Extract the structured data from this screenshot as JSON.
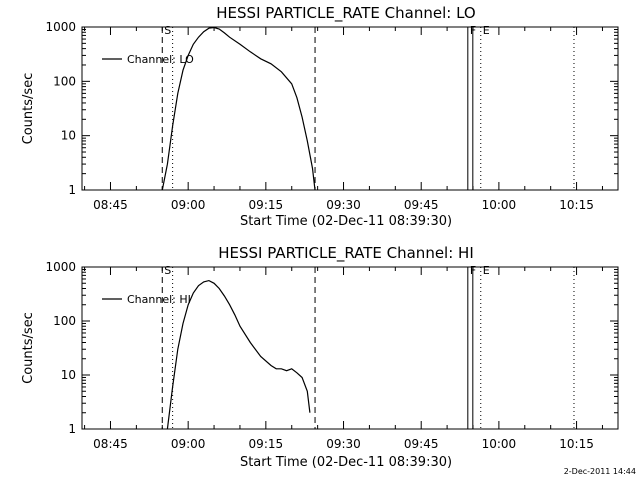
{
  "chart_data": [
    {
      "type": "line",
      "title": "HESSI PARTICLE_RATE Channel: LO",
      "xlabel": "Start Time (02-Dec-11 08:39:30)",
      "ylabel": "Counts/sec",
      "yscale": "log",
      "ylim": [
        1,
        1000
      ],
      "xlim": [
        "08:39:30",
        "10:23:00"
      ],
      "x_ticks": [
        "08:45",
        "09:00",
        "09:15",
        "09:30",
        "09:45",
        "10:00",
        "10:15"
      ],
      "y_ticks": [
        "1",
        "10",
        "100",
        "1000"
      ],
      "legend": {
        "label": "Channel: LO",
        "placement": "upper-left"
      },
      "markers": [
        {
          "label": "S",
          "time": "08:55:00",
          "style": "dashed"
        },
        {
          "label": "",
          "time": "08:57:00",
          "style": "dotted"
        },
        {
          "label": "",
          "time": "09:24:30",
          "style": "dashed"
        },
        {
          "label": "F",
          "time": "09:54:00",
          "style": "solid"
        },
        {
          "label": "E",
          "time": "09:56:30",
          "style": "dotted"
        },
        {
          "label": "",
          "time": "10:14:30",
          "style": "dotted"
        }
      ],
      "series": [
        {
          "name": "Channel: LO",
          "x": [
            "08:55:00",
            "08:56:00",
            "08:57:00",
            "08:58:00",
            "08:59:00",
            "09:00:00",
            "09:01:00",
            "09:02:00",
            "09:03:00",
            "09:04:00",
            "09:05:00",
            "09:06:00",
            "09:07:00",
            "09:08:00",
            "09:10:00",
            "09:12:00",
            "09:14:00",
            "09:16:00",
            "09:18:00",
            "09:20:00",
            "09:21:00",
            "09:22:00",
            "09:23:00",
            "09:24:00",
            "09:24:30"
          ],
          "values": [
            1,
            3,
            15,
            60,
            160,
            300,
            480,
            650,
            820,
            950,
            980,
            920,
            780,
            650,
            480,
            350,
            260,
            210,
            150,
            90,
            50,
            22,
            8,
            2.5,
            1
          ]
        }
      ]
    },
    {
      "type": "line",
      "title": "HESSI PARTICLE_RATE Channel: HI",
      "xlabel": "Start Time (02-Dec-11 08:39:30)",
      "ylabel": "Counts/sec",
      "yscale": "log",
      "ylim": [
        1,
        1000
      ],
      "xlim": [
        "08:39:30",
        "10:23:00"
      ],
      "x_ticks": [
        "08:45",
        "09:00",
        "09:15",
        "09:30",
        "09:45",
        "10:00",
        "10:15"
      ],
      "y_ticks": [
        "1",
        "10",
        "100",
        "1000"
      ],
      "legend": {
        "label": "Channel: HI",
        "placement": "upper-left"
      },
      "markers": [
        {
          "label": "S",
          "time": "08:55:00",
          "style": "dashed"
        },
        {
          "label": "",
          "time": "08:57:00",
          "style": "dotted"
        },
        {
          "label": "",
          "time": "09:24:30",
          "style": "dashed"
        },
        {
          "label": "F",
          "time": "09:54:00",
          "style": "solid"
        },
        {
          "label": "E",
          "time": "09:56:30",
          "style": "dotted"
        },
        {
          "label": "",
          "time": "10:14:30",
          "style": "dotted"
        }
      ],
      "series": [
        {
          "name": "Channel: HI",
          "x": [
            "08:56:00",
            "08:57:00",
            "08:58:00",
            "08:59:00",
            "09:00:00",
            "09:01:00",
            "09:02:00",
            "09:03:00",
            "09:04:00",
            "09:05:00",
            "09:06:00",
            "09:07:00",
            "09:08:00",
            "09:09:00",
            "09:10:00",
            "09:12:00",
            "09:14:00",
            "09:16:00",
            "09:17:00",
            "09:18:00",
            "09:19:00",
            "09:20:00",
            "09:21:00",
            "09:22:00",
            "09:23:00",
            "09:23:30"
          ],
          "values": [
            1,
            6,
            30,
            90,
            200,
            330,
            450,
            530,
            560,
            500,
            400,
            290,
            200,
            130,
            80,
            40,
            22,
            15,
            13,
            13,
            12,
            13,
            11,
            9,
            5,
            2
          ]
        }
      ]
    }
  ],
  "footer": {
    "timestamp": "2-Dec-2011 14:44"
  }
}
